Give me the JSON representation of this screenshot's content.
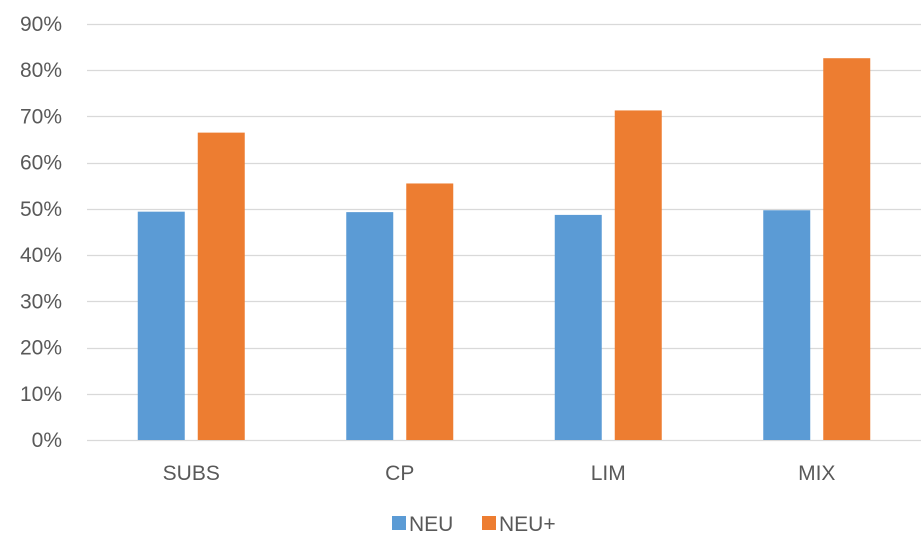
{
  "chart_data": {
    "type": "bar",
    "categories": [
      "SUBS",
      "CP",
      "LIM",
      "MIX"
    ],
    "series": [
      {
        "name": "NEU",
        "values": [
          0.494,
          0.493,
          0.487,
          0.497
        ],
        "color": "#5B9BD5"
      },
      {
        "name": "NEU+",
        "values": [
          0.665,
          0.555,
          0.713,
          0.826
        ],
        "color": "#ED7D31"
      }
    ],
    "title": "",
    "xlabel": "",
    "ylabel": "",
    "ylim": [
      0,
      0.9
    ],
    "yticks": [
      0,
      0.1,
      0.2,
      0.3,
      0.4,
      0.5,
      0.6,
      0.7,
      0.8,
      0.9
    ],
    "ytick_labels": [
      "0%",
      "10%",
      "20%",
      "30%",
      "40%",
      "50%",
      "60%",
      "70%",
      "80%",
      "90%"
    ],
    "grid": true,
    "legend_position": "bottom-center",
    "gridline_color": "#D9D9D9",
    "text_color": "#595959"
  }
}
